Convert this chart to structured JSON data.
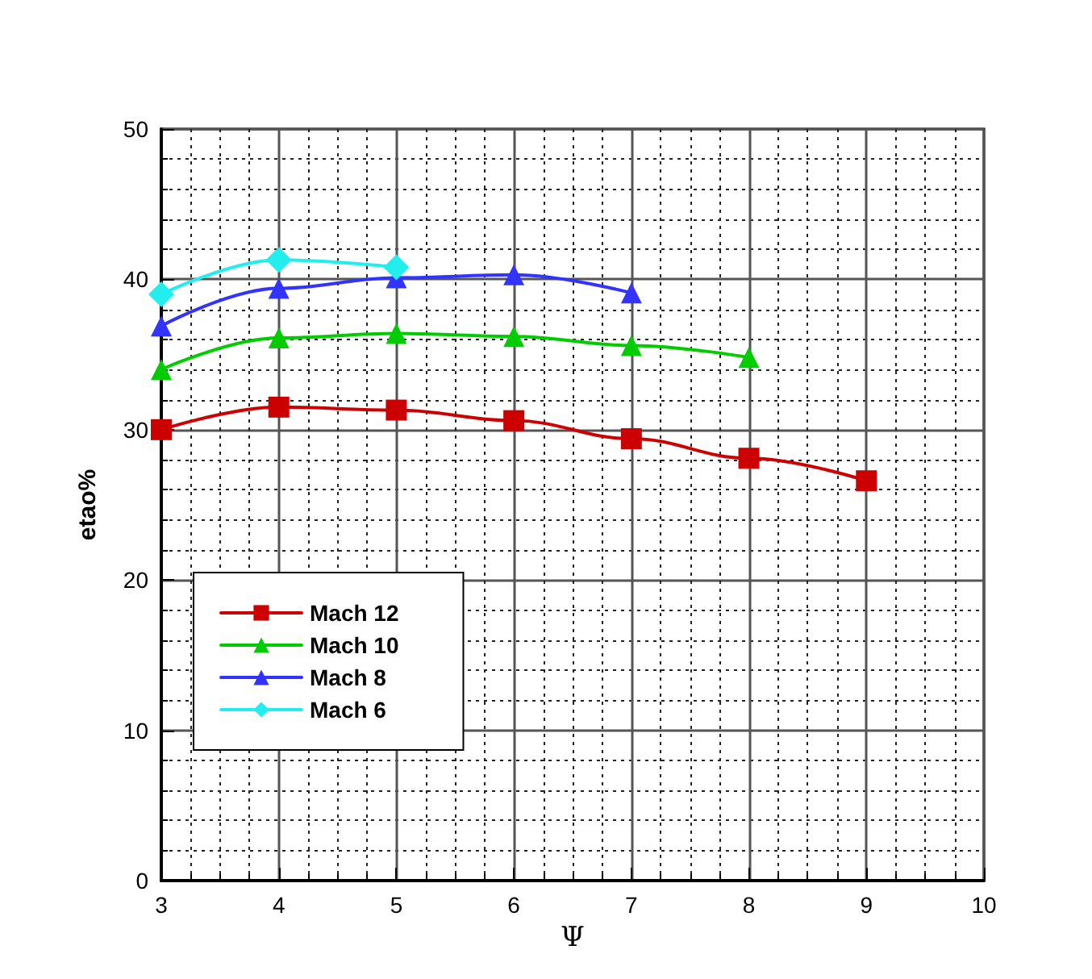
{
  "chart_data": {
    "type": "line",
    "xlabel": "Ψ",
    "ylabel": "etao%",
    "x": [
      3,
      4,
      5,
      6,
      7,
      8,
      9
    ],
    "xlim": [
      3,
      10
    ],
    "xticks": [
      3,
      4,
      5,
      6,
      7,
      8,
      9,
      10
    ],
    "ylim": [
      0,
      50
    ],
    "yticks": [
      0,
      10,
      20,
      30,
      40,
      50
    ],
    "grid": true,
    "legend": "bottom left",
    "series": [
      {
        "name": "Mach 12",
        "color": "#cc0000",
        "marker": "square",
        "values": [
          30,
          31.5,
          31.3,
          30.6,
          29.4,
          28.1,
          26.6
        ]
      },
      {
        "name": "Mach 10",
        "color": "#00cc00",
        "marker": "triangle",
        "values": [
          34,
          36.1,
          36.4,
          36.2,
          35.6,
          34.8,
          null
        ]
      },
      {
        "name": "Mach 8",
        "color": "#3333ff",
        "marker": "triangle",
        "values": [
          36.9,
          39.4,
          40.1,
          40.3,
          39.1,
          null,
          null
        ]
      },
      {
        "name": "Mach 6",
        "color": "#22eeee",
        "marker": "diamond",
        "values": [
          39,
          41.3,
          40.8,
          null,
          null,
          null,
          null
        ]
      }
    ]
  }
}
